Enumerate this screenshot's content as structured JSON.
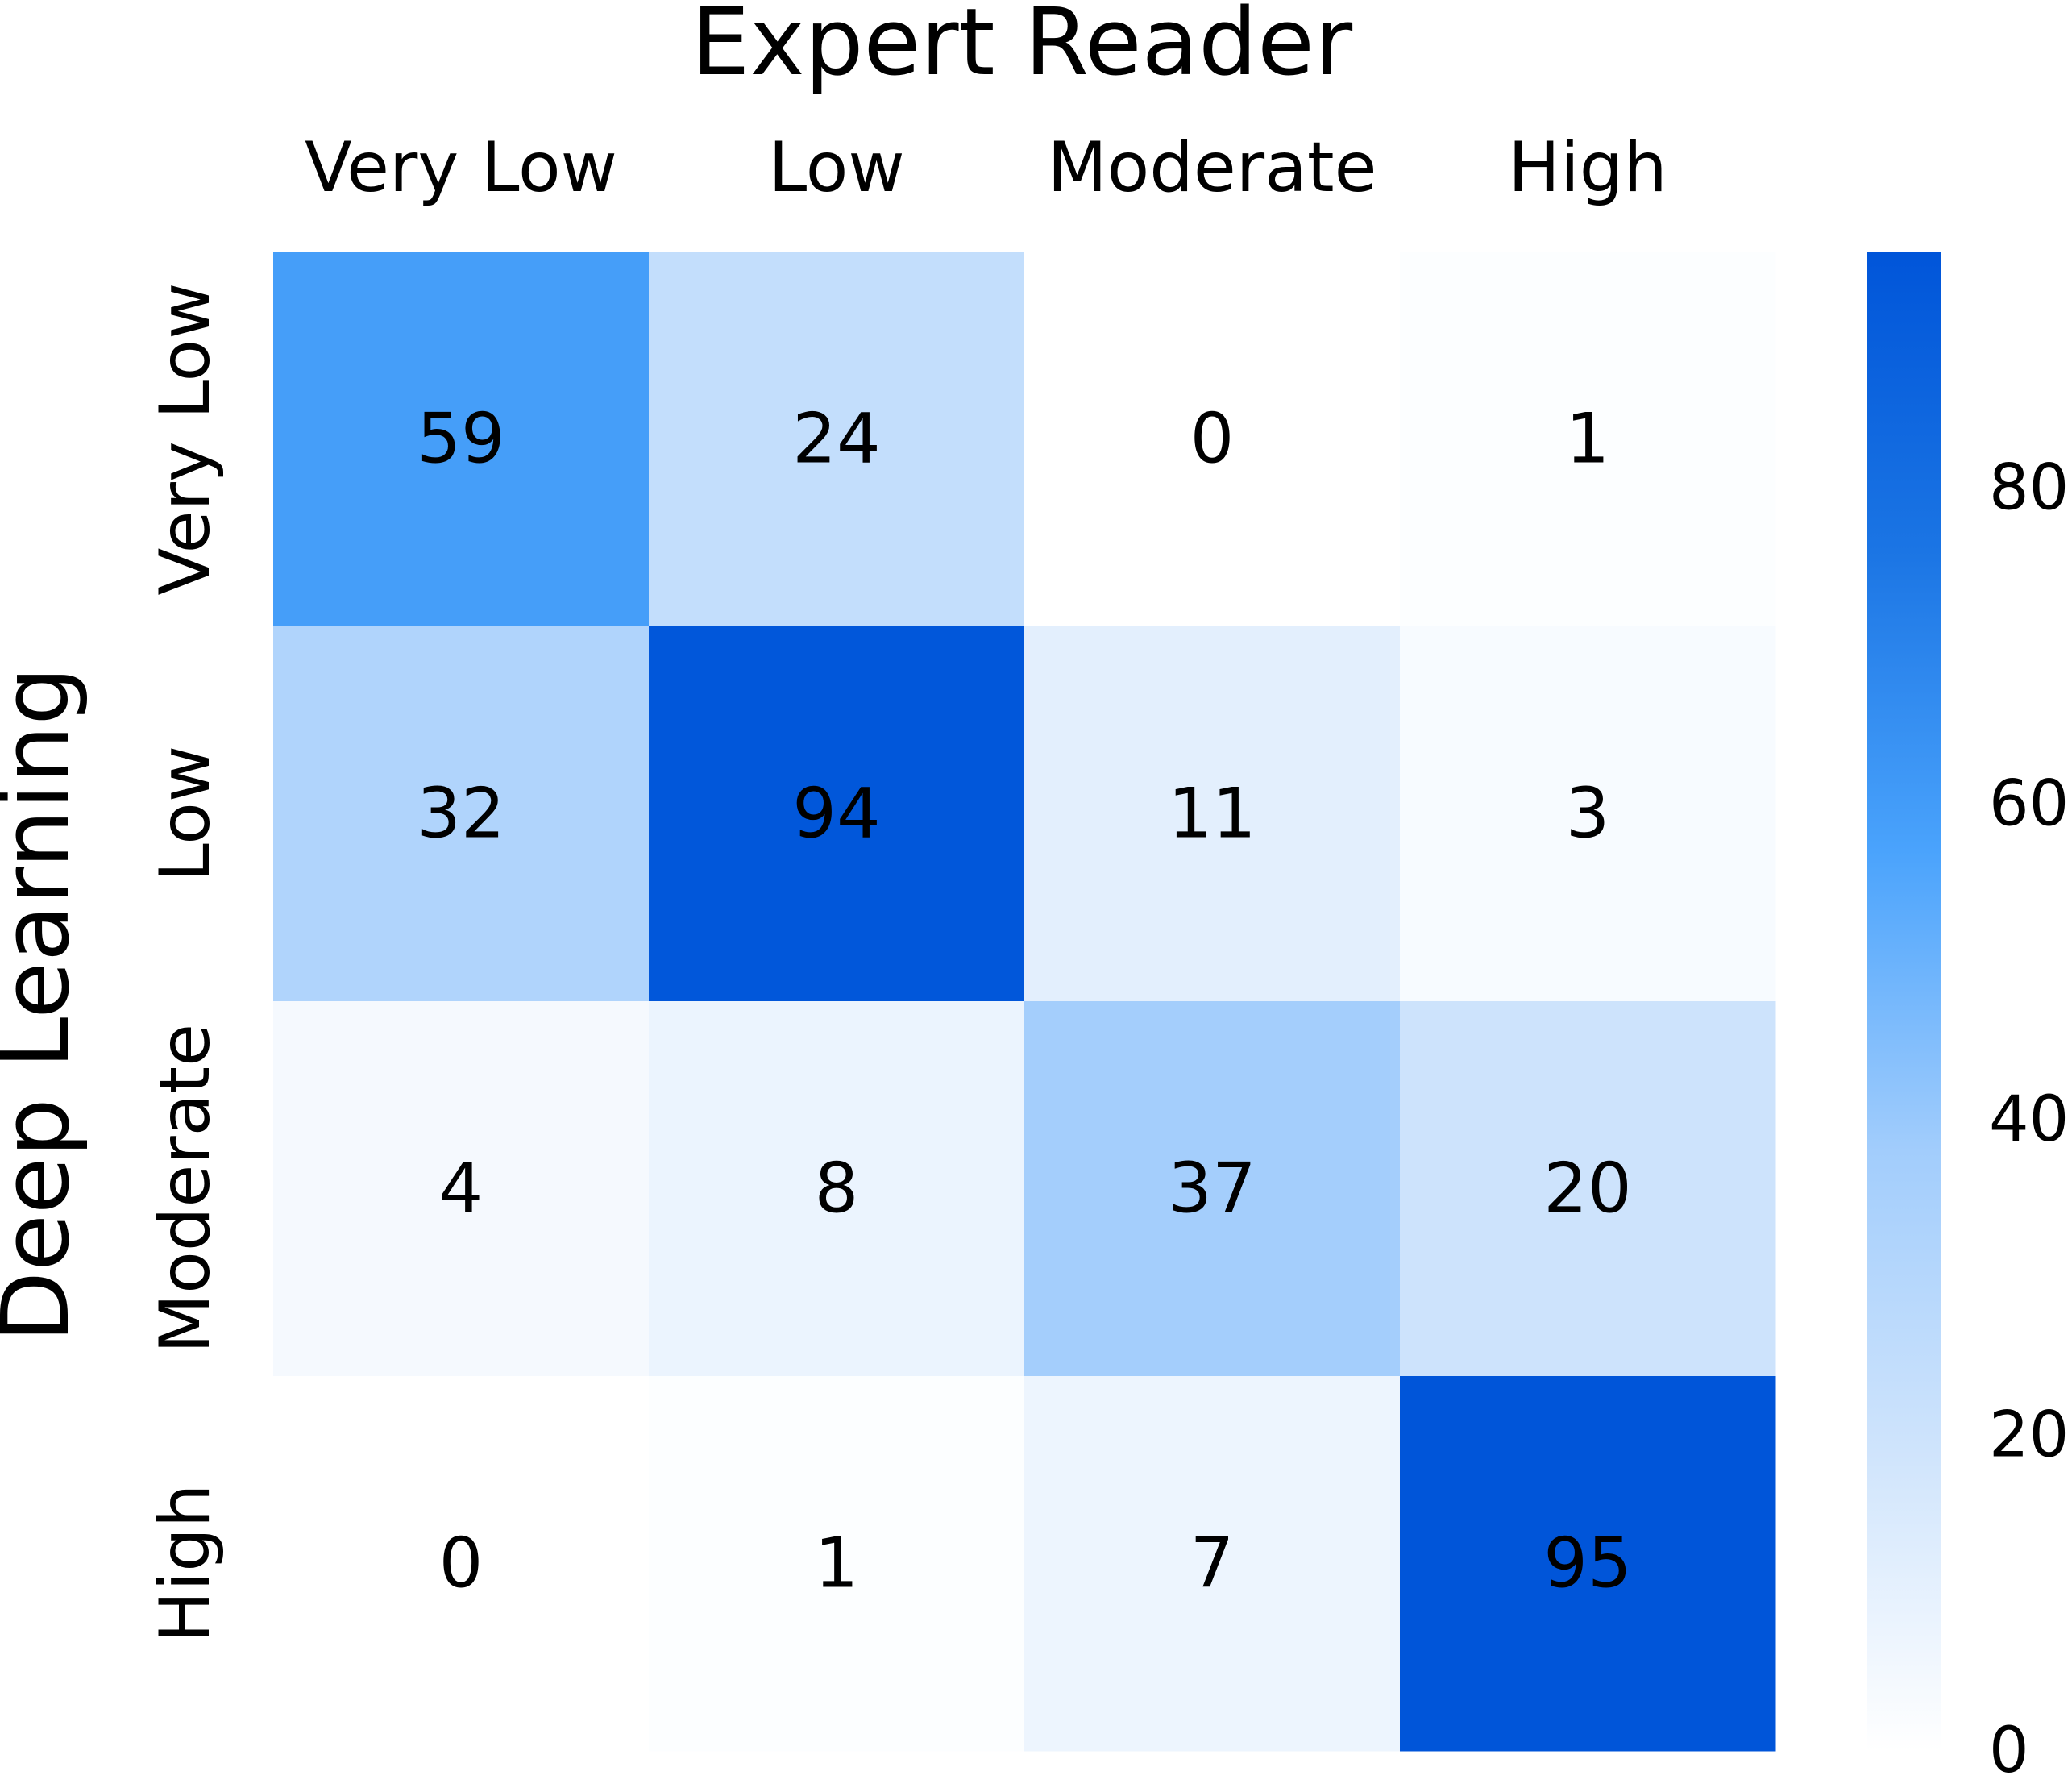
{
  "chart_data": {
    "type": "heatmap",
    "xlabel": "Expert Reader",
    "ylabel": "Deep Learning",
    "x_categories": [
      "Very Low",
      "Low",
      "Moderate",
      "High"
    ],
    "y_categories": [
      "Very Low",
      "Low",
      "Moderate",
      "High"
    ],
    "values": [
      [
        59,
        24,
        0,
        1
      ],
      [
        32,
        94,
        11,
        3
      ],
      [
        4,
        8,
        37,
        20
      ],
      [
        0,
        1,
        7,
        95
      ]
    ],
    "colorbar": {
      "min": 0,
      "max": 95,
      "ticks": [
        0,
        20,
        40,
        60,
        80
      ],
      "colors": [
        "#ffffff",
        "#cfe4fc",
        "#a2cdfc",
        "#4aa3fc",
        "#1b75e4",
        "#0055d9"
      ]
    },
    "x_axis_position": "top",
    "grid": false
  }
}
